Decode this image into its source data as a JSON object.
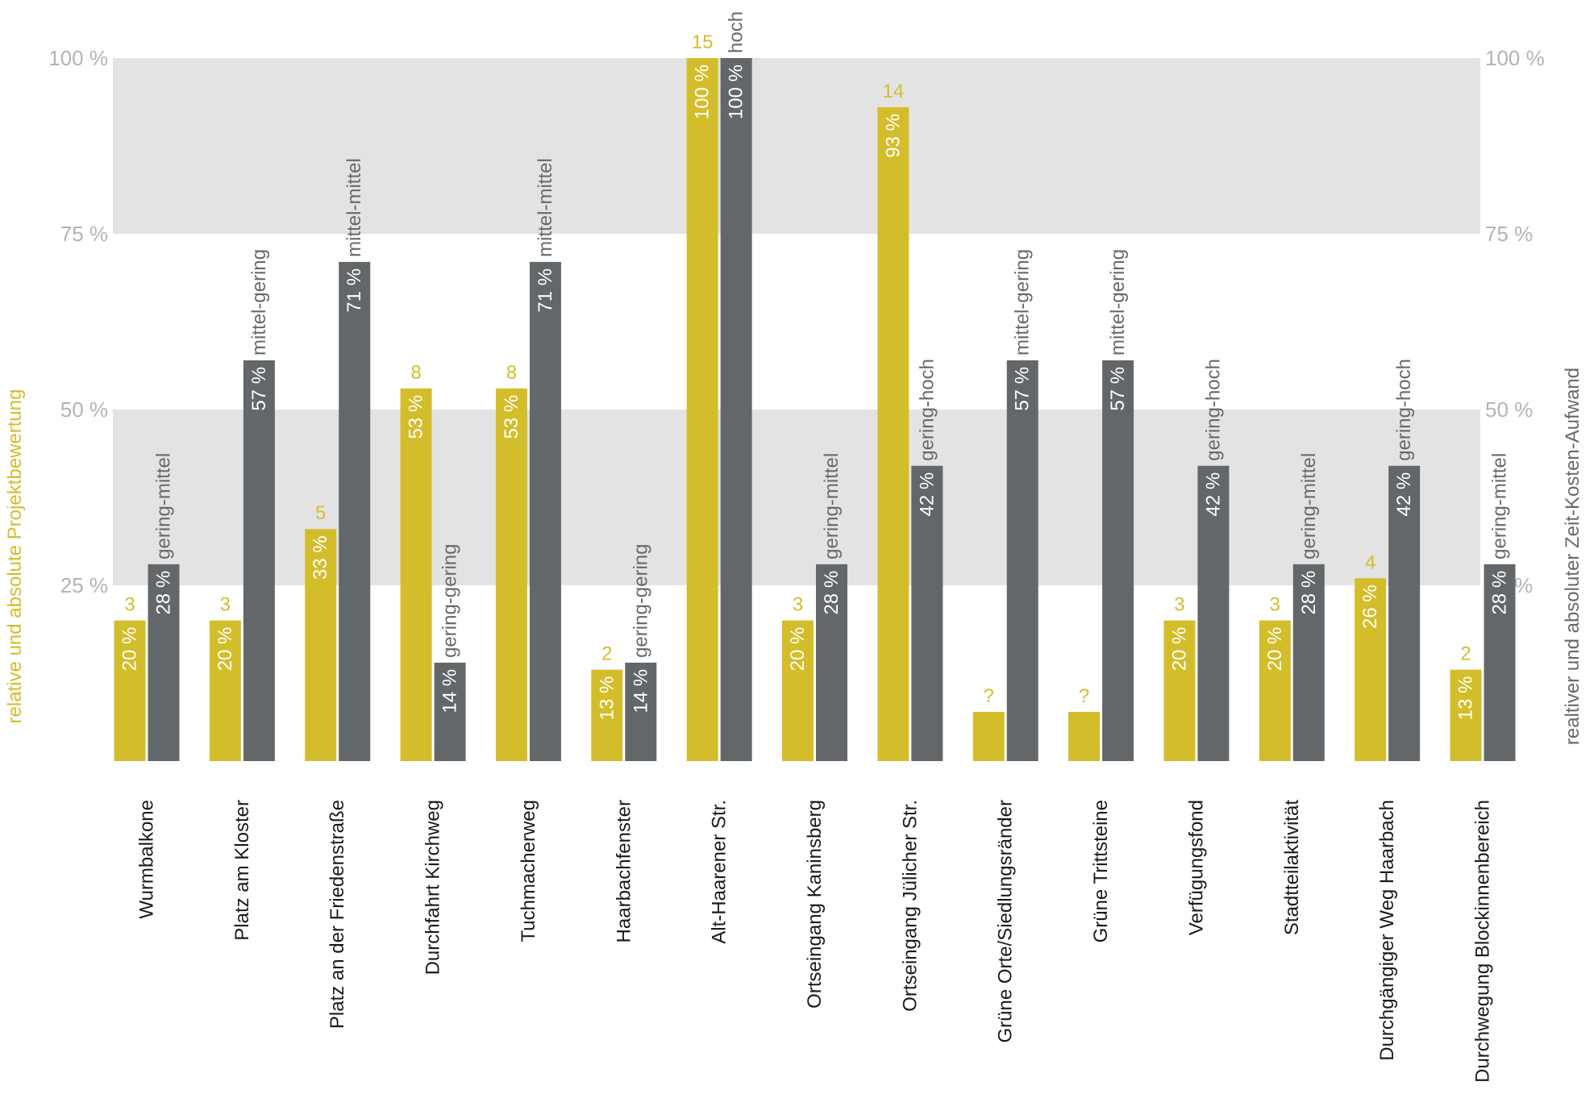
{
  "chart_data": {
    "type": "bar",
    "ylim": [
      0,
      100
    ],
    "y_ticks": [
      "25 %",
      "50 %",
      "75 %",
      "100 %"
    ],
    "y_tick_values": [
      25,
      50,
      75,
      100
    ],
    "left_axis_label": "relative und absolute Projektbewertung",
    "right_axis_label": "realtiver und absoluter Zeit-Kosten-Aufwand",
    "categories": [
      "Wurmbalkone",
      "Platz am Kloster",
      "Platz an der Friedenstraße",
      "Durchfahrt Kirchweg",
      "Tuchmacherweg",
      "Haarbachfenster",
      "Alt-Haarener Str.",
      "Ortseingang Kaninsberg",
      "Ortseingang Jülicher Str.",
      "Grüne Orte/Siedlungsränder",
      "Grüne Trittsteine",
      "Verfügungsfond",
      "Stadtteilaktivität",
      "Durchgängiger Weg Haarbach",
      "Durchwegung Blockinnenbereich"
    ],
    "series": [
      {
        "role": "rating",
        "values": [
          20,
          20,
          33,
          53,
          53,
          13,
          100,
          20,
          93,
          7,
          7,
          20,
          20,
          26,
          13
        ],
        "percent_labels": [
          "20 %",
          "20 %",
          "33 %",
          "53 %",
          "53 %",
          "13 %",
          "100 %",
          "20 %",
          "93 %",
          "",
          "",
          "20 %",
          "20 %",
          "26 %",
          "13 %"
        ],
        "absolute_labels": [
          "3",
          "3",
          "5",
          "8",
          "8",
          "2",
          "15",
          "3",
          "14",
          "?",
          "?",
          "3",
          "3",
          "4",
          "2"
        ]
      },
      {
        "role": "effort",
        "values": [
          28,
          57,
          71,
          14,
          71,
          14,
          100,
          28,
          42,
          57,
          57,
          42,
          28,
          42,
          28
        ],
        "percent_labels": [
          "28 %",
          "57 %",
          "71 %",
          "14 %",
          "71 %",
          "14 %",
          "100 %",
          "28 %",
          "42 %",
          "57 %",
          "57 %",
          "42 %",
          "28 %",
          "42 %",
          "28 %"
        ],
        "level_labels": [
          "gering-mittel",
          "mittel-gering",
          "mittel-mittel",
          "gering-gering",
          "mittel-mittel",
          "gering-gering",
          "hoch",
          "gering-mittel",
          "gering-hoch",
          "mittel-gering",
          "mittel-gering",
          "gering-hoch",
          "gering-mittel",
          "gering-hoch",
          "gering-mittel"
        ]
      }
    ],
    "colors": {
      "rating": "#d4bd2b",
      "effort": "#636769",
      "band": "#e3e3e3",
      "tick": "#b3b3b3",
      "effort_text": "#666a6b",
      "category_text": "#1a1a1a"
    }
  }
}
